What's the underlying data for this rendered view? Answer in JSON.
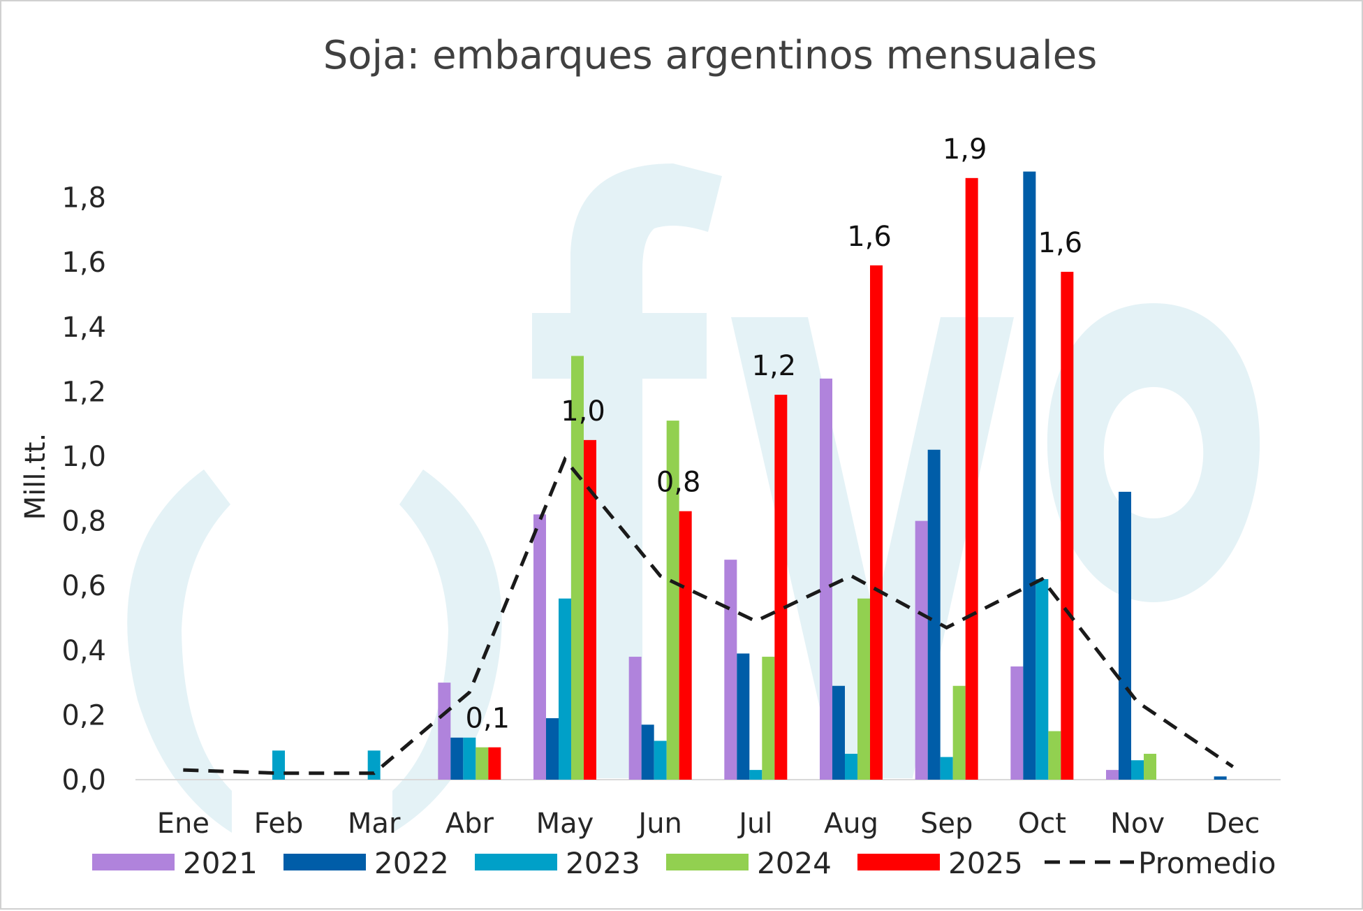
{
  "chart_data": {
    "type": "bar",
    "title": "Soja: embarques argentinos mensuales",
    "ylabel": "Mill.tt.",
    "xlabel": "",
    "ylim": [
      0,
      1.9
    ],
    "yticks": [
      "0,0",
      "0,2",
      "0,4",
      "0,6",
      "0,8",
      "1,0",
      "1,2",
      "1,4",
      "1,6",
      "1,8"
    ],
    "categories": [
      "Ene",
      "Feb",
      "Mar",
      "Abr",
      "May",
      "Jun",
      "Jul",
      "Aug",
      "Sep",
      "Oct",
      "Nov",
      "Dec"
    ],
    "series": [
      {
        "name": "2021",
        "color": "#b083dc",
        "values": [
          0,
          0,
          0,
          0.3,
          0.82,
          0.38,
          0.68,
          1.24,
          0.8,
          0.35,
          0.03,
          0
        ]
      },
      {
        "name": "2022",
        "color": "#005da8",
        "values": [
          0,
          0,
          0,
          0.13,
          0.19,
          0.17,
          0.39,
          0.29,
          1.02,
          1.88,
          0.89,
          0.01
        ]
      },
      {
        "name": "2023",
        "color": "#00a0c8",
        "values": [
          0,
          0.09,
          0.09,
          0.13,
          0.56,
          0.12,
          0.03,
          0.08,
          0.07,
          0.62,
          0.06,
          0
        ]
      },
      {
        "name": "2024",
        "color": "#92d050",
        "values": [
          0,
          0,
          0,
          0.1,
          1.31,
          1.11,
          0.38,
          0.56,
          0.29,
          0.15,
          0.08,
          0
        ]
      },
      {
        "name": "2025",
        "color": "#ff0000",
        "values": [
          0,
          0,
          0,
          0.1,
          1.05,
          0.83,
          1.19,
          1.59,
          1.86,
          1.57,
          null,
          null
        ]
      }
    ],
    "average": {
      "name": "Promedio",
      "color": "#1a1a1a",
      "style": "dashed",
      "values": [
        0.03,
        0.02,
        0.02,
        0.27,
        0.99,
        0.63,
        0.49,
        0.63,
        0.47,
        0.62,
        0.24,
        0.04
      ]
    },
    "data_labels": [
      {
        "category": "Abr",
        "text": "0,1"
      },
      {
        "category": "May",
        "text": "1,0"
      },
      {
        "category": "Jun",
        "text": "0,8"
      },
      {
        "category": "Jul",
        "text": "1,2"
      },
      {
        "category": "Aug",
        "text": "1,6"
      },
      {
        "category": "Sep",
        "text": "1,9"
      },
      {
        "category": "Oct",
        "text": "1,6"
      }
    ],
    "legend": {
      "placement": "bottom"
    },
    "grid": false
  },
  "watermark": {
    "color": "#e4f2f6"
  }
}
